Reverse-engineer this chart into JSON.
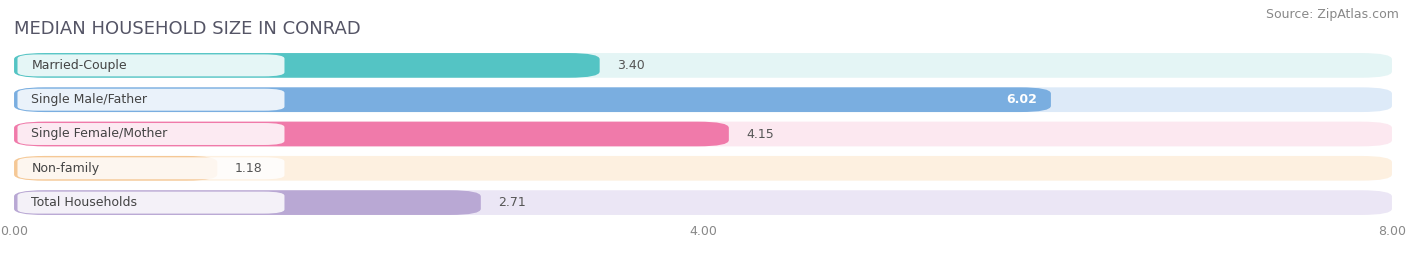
{
  "title": "MEDIAN HOUSEHOLD SIZE IN CONRAD",
  "source": "Source: ZipAtlas.com",
  "categories": [
    "Married-Couple",
    "Single Male/Father",
    "Single Female/Mother",
    "Non-family",
    "Total Households"
  ],
  "values": [
    3.4,
    6.02,
    4.15,
    1.18,
    2.71
  ],
  "bar_colors": [
    "#54c4c4",
    "#7aaee0",
    "#f07aaa",
    "#f5c896",
    "#b9a8d4"
  ],
  "bar_bg_colors": [
    "#e4f5f5",
    "#ddeaf8",
    "#fce8f0",
    "#fdf0e0",
    "#ebe6f5"
  ],
  "value_text_colors": [
    "#555555",
    "#ffffff",
    "#555555",
    "#555555",
    "#555555"
  ],
  "xlim_max": 8.0,
  "xticks": [
    0.0,
    4.0,
    8.0
  ],
  "xtick_labels": [
    "0.00",
    "4.00",
    "8.00"
  ],
  "title_fontsize": 13,
  "source_fontsize": 9,
  "label_fontsize": 9,
  "value_fontsize": 9
}
